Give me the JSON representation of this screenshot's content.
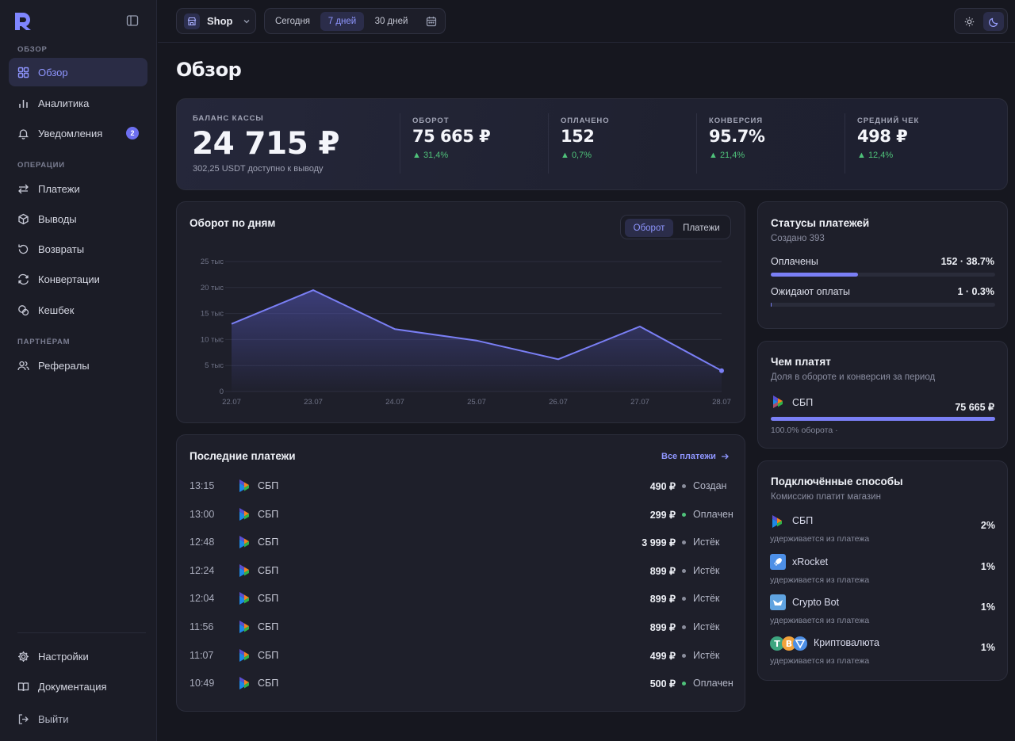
{
  "sidebar": {
    "sections": {
      "overview": "ОБЗОР",
      "operations": "ОПЕРАЦИИ",
      "partners": "ПАРТНЁРАМ"
    },
    "items": [
      {
        "label": "Обзор",
        "icon": "grid-icon"
      },
      {
        "label": "Аналитика",
        "icon": "bar-chart-icon"
      },
      {
        "label": "Уведомления",
        "icon": "bell-icon",
        "badge": "2"
      },
      {
        "label": "Платежи",
        "icon": "transfer-icon"
      },
      {
        "label": "Выводы",
        "icon": "box-icon"
      },
      {
        "label": "Возвраты",
        "icon": "refund-icon"
      },
      {
        "label": "Конвертации",
        "icon": "convert-icon"
      },
      {
        "label": "Кешбек",
        "icon": "cashback-icon"
      },
      {
        "label": "Рефералы",
        "icon": "users-icon"
      }
    ],
    "bottom": [
      {
        "label": "Настройки",
        "icon": "settings-icon"
      },
      {
        "label": "Документация",
        "icon": "book-icon"
      },
      {
        "label": "Выйти",
        "icon": "logout-icon"
      }
    ]
  },
  "topbar": {
    "shop": "Shop",
    "ranges": [
      "Сегодня",
      "7 дней",
      "30 дней"
    ],
    "selected_range": "7 дней"
  },
  "page_title": "Обзор",
  "kpi": {
    "balance_label": "БАЛАНС КАССЫ",
    "balance_value": "24 715 ₽",
    "balance_sub": "302,25 USDT доступно к выводу",
    "items": [
      {
        "label": "ОБОРОТ",
        "value": "75 665 ₽",
        "delta": "▲ 31,4%"
      },
      {
        "label": "ОПЛАЧЕНО",
        "value": "152",
        "delta": "▲ 0,7%"
      },
      {
        "label": "КОНВЕРСИЯ",
        "value": "95.7%",
        "delta": "▲ 21,4%"
      },
      {
        "label": "СРЕДНИЙ ЧЕК",
        "value": "498 ₽",
        "delta": "▲ 12,4%"
      }
    ]
  },
  "turnover": {
    "title": "Оборот по дням",
    "toggle": [
      "Оборот",
      "Платежи"
    ],
    "selected_toggle": "Оборот"
  },
  "chart_data": {
    "type": "area",
    "title": "Оборот по дням",
    "x": [
      "22.07",
      "23.07",
      "24.07",
      "25.07",
      "26.07",
      "27.07",
      "28.07"
    ],
    "series": [
      {
        "values": [
          13000,
          19500,
          12000,
          9800,
          6200,
          12500,
          4000
        ]
      }
    ],
    "yticks": [
      "0",
      "5 тыс",
      "10 тыс",
      "15 тыс",
      "20 тыс",
      "25 тыс"
    ],
    "ylim": [
      0,
      25000
    ],
    "grid": true,
    "accent": "#7a7ff5"
  },
  "recent": {
    "title": "Последние платежи",
    "link": "Все платежи",
    "rows": [
      {
        "time": "13:15",
        "method": "СБП",
        "amount": "490 ₽",
        "status": "Создан",
        "color": "#8a8d9c"
      },
      {
        "time": "13:00",
        "method": "СБП",
        "amount": "299 ₽",
        "status": "Оплачен",
        "color": "#4fc27a"
      },
      {
        "time": "12:48",
        "method": "СБП",
        "amount": "3 999 ₽",
        "status": "Истёк",
        "color": "#8a8d9c"
      },
      {
        "time": "12:24",
        "method": "СБП",
        "amount": "899 ₽",
        "status": "Истёк",
        "color": "#8a8d9c"
      },
      {
        "time": "12:04",
        "method": "СБП",
        "amount": "899 ₽",
        "status": "Истёк",
        "color": "#8a8d9c"
      },
      {
        "time": "11:56",
        "method": "СБП",
        "amount": "899 ₽",
        "status": "Истёк",
        "color": "#8a8d9c"
      },
      {
        "time": "11:07",
        "method": "СБП",
        "amount": "499 ₽",
        "status": "Истёк",
        "color": "#8a8d9c"
      },
      {
        "time": "10:49",
        "method": "СБП",
        "amount": "500 ₽",
        "status": "Оплачен",
        "color": "#4fc27a"
      }
    ]
  },
  "statuses": {
    "title": "Статусы платежей",
    "sub": "Создано 393",
    "items": [
      {
        "label": "Оплачены",
        "value": "152 · 38.7%",
        "fraction": 0.387
      },
      {
        "label": "Ожидают оплаты",
        "value": "1 · 0.3%",
        "fraction": 0.003
      }
    ]
  },
  "payby": {
    "title": "Чем платят",
    "sub": "Доля в обороте и конверсия за период",
    "method": "СБП",
    "amount": "75 665 ₽",
    "share_text": "100.0% оборота ·",
    "fraction": 1.0
  },
  "methods": {
    "title": "Подключённые способы",
    "sub": "Комиссию платит магазин",
    "items": [
      {
        "name": "СБП",
        "sub": "удерживается из платежа",
        "pct": "2%",
        "icon": "sbp-icon"
      },
      {
        "name": "xRocket",
        "sub": "удерживается из платежа",
        "pct": "1%",
        "icon": "rocket-icon"
      },
      {
        "name": "Crypto Bot",
        "sub": "удерживается из платежа",
        "pct": "1%",
        "icon": "cryptobot-icon"
      },
      {
        "name": "Криптовалюта",
        "sub": "удерживается из платежа",
        "pct": "1%",
        "icon": "crypto-coins-icon"
      }
    ]
  }
}
